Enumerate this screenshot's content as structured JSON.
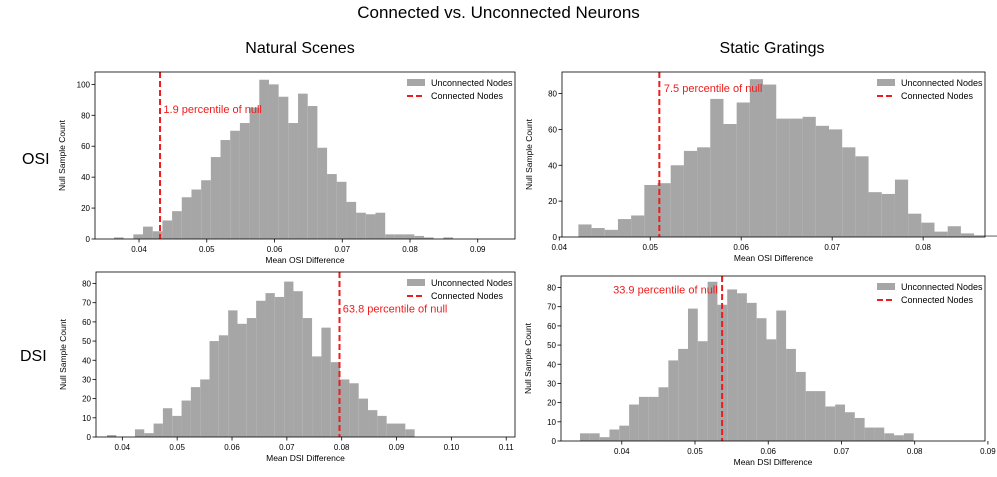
{
  "figure": {
    "title": "Connected vs. Unconnected Neurons",
    "columns": [
      "Natural Scenes",
      "Static Gratings"
    ],
    "rows": [
      "OSI",
      "DSI"
    ]
  },
  "colors": {
    "bar": "#a6a6a6",
    "line": "#ee1c1c",
    "axis": "#000000"
  },
  "chart_data": [
    {
      "type": "bar",
      "id": "ns-osi",
      "title": "Natural Scenes",
      "xlabel": "Mean OSI Difference",
      "ylabel": "Null Sample Count",
      "xlim": [
        0.0335,
        0.0955
      ],
      "ylim": [
        0,
        108
      ],
      "xticks": [
        0.04,
        0.05,
        0.06,
        0.07,
        0.08,
        0.09
      ],
      "xtick_labels": [
        "0.04",
        "0.05",
        "0.06",
        "0.07",
        "0.08",
        "0.09"
      ],
      "yticks": [
        0,
        20,
        40,
        60,
        80,
        100
      ],
      "ytick_labels": [
        "0",
        "20",
        "40",
        "60",
        "80",
        "100"
      ],
      "bin_start": 0.0363,
      "bin_width": 0.00143,
      "values": [
        1,
        0,
        3,
        8,
        5,
        12,
        18,
        27,
        32,
        38,
        53,
        64,
        70,
        75,
        85,
        103,
        100,
        92,
        75,
        94,
        86,
        59,
        42,
        37,
        24,
        17,
        16,
        17,
        3,
        3,
        3,
        2,
        1,
        0,
        1
      ],
      "series": [
        {
          "name": "Unconnected Nodes",
          "kind": "histogram"
        },
        {
          "name": "Connected Nodes",
          "kind": "vline",
          "x": 0.0431
        }
      ],
      "annotation": {
        "text": "1.9 percentile of null",
        "x": 0.0436,
        "y": 84
      },
      "legend": "top-right"
    },
    {
      "type": "bar",
      "id": "sg-osi",
      "title": "Static Gratings",
      "xlabel": "Mean OSI Difference",
      "ylabel": "Null Sample Count",
      "xlim": [
        0.0403,
        0.0868
      ],
      "ylim": [
        0,
        92
      ],
      "xticks": [
        0.04,
        0.05,
        0.06,
        0.07,
        0.08
      ],
      "xtick_labels": [
        "0.04",
        "0.05",
        "0.06",
        "0.07",
        "0.08"
      ],
      "yticks": [
        0,
        20,
        40,
        60,
        80
      ],
      "ytick_labels": [
        "0",
        "20",
        "40",
        "60",
        "80"
      ],
      "bin_start": 0.0421,
      "bin_width": 0.00145,
      "values": [
        7,
        5,
        4,
        10,
        12,
        29,
        30,
        40,
        48,
        50,
        77,
        63,
        75,
        88,
        85,
        66,
        66,
        67,
        62,
        60,
        50,
        45,
        25,
        24,
        32,
        13,
        8,
        3,
        6,
        2,
        1,
        1
      ],
      "series": [
        {
          "name": "Unconnected Nodes",
          "kind": "histogram"
        },
        {
          "name": "Connected Nodes",
          "kind": "vline",
          "x": 0.051
        }
      ],
      "annotation": {
        "text": "7.5 percentile of null",
        "x": 0.0515,
        "y": 83
      },
      "legend": "top-right"
    },
    {
      "type": "bar",
      "id": "ns-dsi",
      "title": "Natural Scenes",
      "xlabel": "Mean DSI Difference",
      "ylabel": "Null Sample Count",
      "xlim": [
        0.0352,
        0.1116
      ],
      "ylim": [
        0,
        86
      ],
      "xticks": [
        0.04,
        0.05,
        0.06,
        0.07,
        0.08,
        0.09,
        0.1,
        0.11
      ],
      "xtick_labels": [
        "0.04",
        "0.05",
        "0.06",
        "0.07",
        "0.08",
        "0.09",
        "0.10",
        "0.11"
      ],
      "yticks": [
        0,
        10,
        20,
        30,
        40,
        50,
        60,
        70,
        80
      ],
      "ytick_labels": [
        "0",
        "10",
        "20",
        "30",
        "40",
        "50",
        "60",
        "70",
        "80"
      ],
      "bin_start": 0.0372,
      "bin_width": 0.0017,
      "values": [
        1,
        0,
        0,
        4,
        2,
        7,
        15,
        11,
        19,
        26,
        30,
        50,
        53,
        66,
        59,
        62,
        71,
        75,
        73,
        81,
        76,
        62,
        42,
        57,
        39,
        30,
        28,
        20,
        14,
        11,
        7,
        7,
        4
      ],
      "series": [
        {
          "name": "Unconnected Nodes",
          "kind": "histogram"
        },
        {
          "name": "Connected Nodes",
          "kind": "vline",
          "x": 0.0796
        }
      ],
      "annotation": {
        "text": "63.8 percentile of null",
        "x": 0.0802,
        "y": 67
      },
      "legend": "top-right"
    },
    {
      "type": "bar",
      "id": "sg-dsi",
      "title": "Static Gratings",
      "xlabel": "Mean DSI Difference",
      "ylabel": "Null Sample Count",
      "xlim": [
        0.0317,
        0.0896
      ],
      "ylim": [
        0,
        86
      ],
      "xticks": [
        0.04,
        0.05,
        0.06,
        0.07,
        0.08,
        0.09
      ],
      "xtick_labels": [
        "0.04",
        "0.05",
        "0.06",
        "0.07",
        "0.08",
        "0.09"
      ],
      "yticks": [
        0,
        10,
        20,
        30,
        40,
        50,
        60,
        70,
        80
      ],
      "ytick_labels": [
        "0",
        "10",
        "20",
        "30",
        "40",
        "50",
        "60",
        "70",
        "80"
      ],
      "bin_start": 0.0343,
      "bin_width": 0.00134,
      "values": [
        4,
        4,
        2,
        6,
        8,
        19,
        23,
        23,
        28,
        42,
        48,
        69,
        52,
        83,
        71,
        79,
        77,
        72,
        64,
        53,
        68,
        48,
        36,
        26,
        26,
        18,
        19,
        15,
        12,
        7,
        7,
        4,
        3,
        4
      ],
      "series": [
        {
          "name": "Unconnected Nodes",
          "kind": "histogram"
        },
        {
          "name": "Connected Nodes",
          "kind": "vline",
          "x": 0.0537
        }
      ],
      "annotation": {
        "text": "33.9 percentile of null",
        "x": 0.0531,
        "y": 79,
        "align": "end"
      },
      "legend": "top-right"
    }
  ]
}
